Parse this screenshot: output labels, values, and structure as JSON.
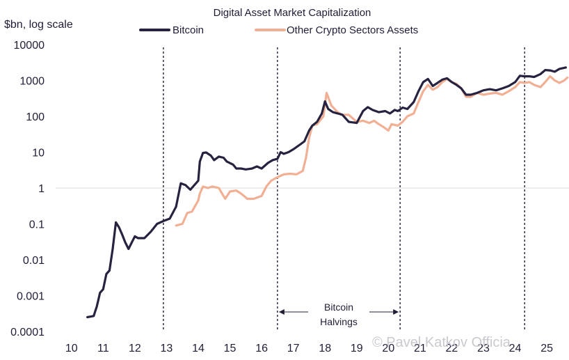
{
  "chart_data": {
    "type": "line",
    "title": "Digital Asset Market Capitalization",
    "ylabel": "$bn, log scale",
    "xlabel": "",
    "y_scale": "log",
    "ylim": [
      0.0001,
      10000
    ],
    "xlim": [
      9.5,
      25.7
    ],
    "y_ticks": [
      0.0001,
      0.001,
      0.01,
      0.1,
      1,
      10,
      100,
      1000,
      10000
    ],
    "y_tick_labels": [
      "0.0001",
      "0.001",
      "0.01",
      "0.1",
      "1",
      "10",
      "100",
      "1000",
      "10000"
    ],
    "x_ticks": [
      10,
      11,
      12,
      13,
      14,
      15,
      16,
      17,
      18,
      19,
      20,
      21,
      22,
      23,
      24,
      25
    ],
    "x_tick_labels": [
      "10",
      "11",
      "12",
      "13",
      "14",
      "15",
      "16",
      "17",
      "18",
      "19",
      "20",
      "21",
      "22",
      "23",
      "24",
      "25"
    ],
    "reference_line_y": 1,
    "halvings": [
      12.9,
      16.5,
      20.37,
      24.3
    ],
    "halvings_annotation": [
      "Bitcoin",
      "Halvings"
    ],
    "halvings_arrow": [
      16.5,
      20.37
    ],
    "legend": [
      "Bitcoin",
      "Other Crypto Sectors Assets"
    ],
    "legend_position": "top",
    "series": [
      {
        "name": "Bitcoin",
        "color": "#25233f",
        "points": [
          [
            10.5,
            0.00025
          ],
          [
            10.7,
            0.00027
          ],
          [
            10.8,
            0.0005
          ],
          [
            10.9,
            0.0012
          ],
          [
            11.0,
            0.0015
          ],
          [
            11.1,
            0.004
          ],
          [
            11.2,
            0.005
          ],
          [
            11.3,
            0.02
          ],
          [
            11.4,
            0.11
          ],
          [
            11.5,
            0.08
          ],
          [
            11.6,
            0.05
          ],
          [
            11.7,
            0.03
          ],
          [
            11.8,
            0.02
          ],
          [
            11.9,
            0.03
          ],
          [
            12.0,
            0.045
          ],
          [
            12.1,
            0.04
          ],
          [
            12.3,
            0.04
          ],
          [
            12.5,
            0.06
          ],
          [
            12.7,
            0.1
          ],
          [
            12.9,
            0.12
          ],
          [
            13.1,
            0.14
          ],
          [
            13.3,
            0.3
          ],
          [
            13.45,
            1.35
          ],
          [
            13.6,
            1.2
          ],
          [
            13.75,
            0.9
          ],
          [
            14.0,
            1.6
          ],
          [
            14.05,
            5.5
          ],
          [
            14.15,
            9.5
          ],
          [
            14.25,
            9.8
          ],
          [
            14.4,
            8.0
          ],
          [
            14.5,
            6.0
          ],
          [
            14.65,
            7.5
          ],
          [
            14.8,
            7.0
          ],
          [
            14.9,
            5.5
          ],
          [
            15.1,
            4.5
          ],
          [
            15.2,
            3.5
          ],
          [
            15.35,
            3.5
          ],
          [
            15.5,
            3.3
          ],
          [
            15.7,
            3.5
          ],
          [
            15.85,
            4.0
          ],
          [
            16.0,
            3.5
          ],
          [
            16.2,
            5.0
          ],
          [
            16.35,
            6.0
          ],
          [
            16.5,
            6.5
          ],
          [
            16.6,
            10.0
          ],
          [
            16.7,
            9.0
          ],
          [
            16.85,
            10.0
          ],
          [
            17.0,
            12.0
          ],
          [
            17.2,
            16.0
          ],
          [
            17.35,
            20.0
          ],
          [
            17.5,
            40.0
          ],
          [
            17.6,
            55.0
          ],
          [
            17.75,
            70.0
          ],
          [
            17.9,
            120.0
          ],
          [
            18.0,
            260.0
          ],
          [
            18.1,
            160.0
          ],
          [
            18.25,
            130.0
          ],
          [
            18.4,
            120.0
          ],
          [
            18.55,
            110.0
          ],
          [
            18.75,
            70.0
          ],
          [
            19.0,
            65.0
          ],
          [
            19.2,
            140.0
          ],
          [
            19.35,
            180.0
          ],
          [
            19.5,
            150.0
          ],
          [
            19.7,
            130.0
          ],
          [
            19.9,
            140.0
          ],
          [
            20.05,
            120.0
          ],
          [
            20.2,
            150.0
          ],
          [
            20.3,
            140.0
          ],
          [
            20.45,
            175.0
          ],
          [
            20.6,
            160.0
          ],
          [
            20.8,
            250.0
          ],
          [
            20.95,
            500.0
          ],
          [
            21.1,
            900.0
          ],
          [
            21.25,
            1100.0
          ],
          [
            21.4,
            700.0
          ],
          [
            21.55,
            850.0
          ],
          [
            21.7,
            1050.0
          ],
          [
            21.85,
            1150.0
          ],
          [
            22.0,
            900.0
          ],
          [
            22.15,
            750.0
          ],
          [
            22.3,
            600.0
          ],
          [
            22.45,
            400.0
          ],
          [
            22.6,
            400.0
          ],
          [
            22.8,
            450.0
          ],
          [
            23.0,
            530.0
          ],
          [
            23.2,
            570.0
          ],
          [
            23.4,
            530.0
          ],
          [
            23.6,
            600.0
          ],
          [
            23.8,
            700.0
          ],
          [
            24.0,
            900.0
          ],
          [
            24.15,
            1350.0
          ],
          [
            24.3,
            1300.0
          ],
          [
            24.45,
            1300.0
          ],
          [
            24.6,
            1250.0
          ],
          [
            24.8,
            1500.0
          ],
          [
            24.95,
            1950.0
          ],
          [
            25.1,
            1900.0
          ],
          [
            25.25,
            1750.0
          ],
          [
            25.4,
            2100.0
          ],
          [
            25.6,
            2300.0
          ]
        ]
      },
      {
        "name": "Other Crypto Sectors Assets",
        "color": "#f1b094",
        "points": [
          [
            13.3,
            0.09
          ],
          [
            13.5,
            0.1
          ],
          [
            13.65,
            0.2
          ],
          [
            13.8,
            0.22
          ],
          [
            14.0,
            0.45
          ],
          [
            14.05,
            0.7
          ],
          [
            14.15,
            1.1
          ],
          [
            14.3,
            1.0
          ],
          [
            14.45,
            1.1
          ],
          [
            14.65,
            1.0
          ],
          [
            14.85,
            0.5
          ],
          [
            15.0,
            0.8
          ],
          [
            15.2,
            0.85
          ],
          [
            15.35,
            0.7
          ],
          [
            15.55,
            0.5
          ],
          [
            15.75,
            0.5
          ],
          [
            16.0,
            0.6
          ],
          [
            16.15,
            1.1
          ],
          [
            16.3,
            1.6
          ],
          [
            16.5,
            2.0
          ],
          [
            16.7,
            2.4
          ],
          [
            16.9,
            2.5
          ],
          [
            17.1,
            2.4
          ],
          [
            17.3,
            3.0
          ],
          [
            17.4,
            7.0
          ],
          [
            17.5,
            25.0
          ],
          [
            17.6,
            55.0
          ],
          [
            17.75,
            60.0
          ],
          [
            17.95,
            100.0
          ],
          [
            18.05,
            450.0
          ],
          [
            18.2,
            200.0
          ],
          [
            18.4,
            130.0
          ],
          [
            18.55,
            110.0
          ],
          [
            18.75,
            110.0
          ],
          [
            19.0,
            70.0
          ],
          [
            19.2,
            75.0
          ],
          [
            19.4,
            65.0
          ],
          [
            19.55,
            75.0
          ],
          [
            19.7,
            60.0
          ],
          [
            19.85,
            50.0
          ],
          [
            20.0,
            40.0
          ],
          [
            20.1,
            60.0
          ],
          [
            20.3,
            55.0
          ],
          [
            20.45,
            70.0
          ],
          [
            20.6,
            100.0
          ],
          [
            20.8,
            120.0
          ],
          [
            20.95,
            250.0
          ],
          [
            21.1,
            500.0
          ],
          [
            21.25,
            750.0
          ],
          [
            21.4,
            550.0
          ],
          [
            21.55,
            650.0
          ],
          [
            21.7,
            900.0
          ],
          [
            21.85,
            1100.0
          ],
          [
            22.0,
            900.0
          ],
          [
            22.15,
            800.0
          ],
          [
            22.3,
            600.0
          ],
          [
            22.45,
            350.0
          ],
          [
            22.6,
            350.0
          ],
          [
            22.8,
            450.0
          ],
          [
            23.0,
            400.0
          ],
          [
            23.2,
            430.0
          ],
          [
            23.4,
            450.0
          ],
          [
            23.6,
            400.0
          ],
          [
            23.8,
            500.0
          ],
          [
            24.0,
            650.0
          ],
          [
            24.15,
            900.0
          ],
          [
            24.3,
            850.0
          ],
          [
            24.45,
            900.0
          ],
          [
            24.6,
            750.0
          ],
          [
            24.8,
            650.0
          ],
          [
            24.95,
            900.0
          ],
          [
            25.1,
            1300.0
          ],
          [
            25.25,
            1000.0
          ],
          [
            25.4,
            850.0
          ],
          [
            25.55,
            1000.0
          ],
          [
            25.65,
            1200.0
          ]
        ]
      }
    ]
  },
  "watermark": "© Pavel Katkov Officia"
}
